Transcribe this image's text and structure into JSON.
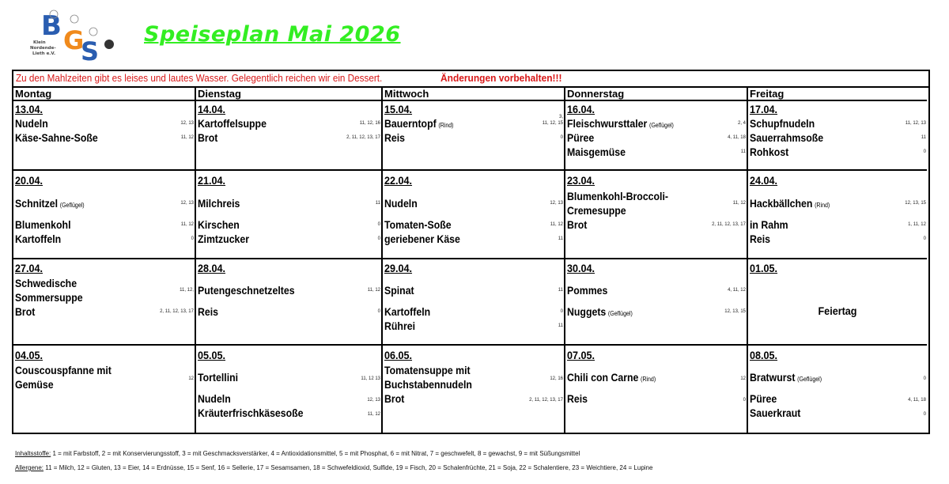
{
  "logo": {
    "letters": [
      "B",
      "G",
      "S"
    ],
    "text": "Klein Nordende-Lieth e.V.",
    "colors": {
      "blue": "#2a5db0",
      "orange": "#f08a1c"
    }
  },
  "title": "Speiseplan Mai 2026",
  "notice": {
    "text": "Zu den Mahlzeiten gibt es leises und lautes Wasser. Gelegentlich reichen wir ein Dessert.",
    "warning": "Änderungen vorbehalten!!!",
    "color": "#d81818"
  },
  "weekdays": [
    "Montag",
    "Dienstag",
    "Mittwoch",
    "Donnerstag",
    "Freitag"
  ],
  "weeks": [
    {
      "days": [
        {
          "date": "13.04.",
          "items": [
            {
              "name": "Nudeln",
              "codes": "12, 13"
            },
            {
              "name": "Käse-Sahne-Soße",
              "codes": "11, 12"
            }
          ]
        },
        {
          "date": "14.04.",
          "items": [
            {
              "name": "Kartoffelsuppe",
              "codes": "11, 12, 16"
            },
            {
              "name": "Brot",
              "codes": "2, 11, 12, 13, 17"
            }
          ]
        },
        {
          "date": "15.04.",
          "items": [
            {
              "name": "Bauerntopf",
              "note": "(Rind)",
              "codes": "3,\n11, 12, 15"
            },
            {
              "name": "Reis",
              "codes": "0"
            }
          ]
        },
        {
          "date": "16.04.",
          "items": [
            {
              "name": "Fleischwursttaler",
              "note": "(Geflügel)",
              "codes": "2, 4"
            },
            {
              "name": "Püree",
              "codes": "4, 11, 18"
            },
            {
              "name": "Maisgemüse",
              "codes": "11"
            }
          ]
        },
        {
          "date": "17.04.",
          "items": [
            {
              "name": "Schupfnudeln",
              "codes": "11, 12, 13"
            },
            {
              "name": "Sauerrahmsoße",
              "codes": "11"
            },
            {
              "name": "Rohkost",
              "codes": "0"
            }
          ]
        }
      ]
    },
    {
      "days": [
        {
          "date": "20.04.",
          "items": [
            {
              "name": "Schnitzel",
              "note": "(Geflügel)",
              "codes": "12, 13"
            },
            {
              "name": "Blumenkohl",
              "codes": "11, 12"
            },
            {
              "name": "Kartoffeln",
              "codes": "0"
            }
          ]
        },
        {
          "date": "21.04.",
          "items": [
            {
              "name": "Milchreis",
              "codes": "11"
            },
            {
              "name": "Kirschen",
              "codes": "0"
            },
            {
              "name": "Zimtzucker",
              "codes": "0"
            }
          ]
        },
        {
          "date": "22.04.",
          "items": [
            {
              "name": "Nudeln",
              "codes": "12, 13"
            },
            {
              "name": "Tomaten-Soße",
              "codes": "11, 12"
            },
            {
              "name": "geriebener Käse",
              "codes": "11"
            }
          ]
        },
        {
          "date": "23.04.",
          "items": [
            {
              "name": "Blumenkohl-Broccoli-\nCremesuppe",
              "codes": "11, 12"
            },
            {
              "name": "Brot",
              "codes": "2, 11, 12, 13, 17"
            }
          ]
        },
        {
          "date": "24.04.",
          "items": [
            {
              "name": "Hackbällchen",
              "note": "(Rind)",
              "codes": "12, 13, 15"
            },
            {
              "name": "in Rahm",
              "codes": "1, 11, 12"
            },
            {
              "name": "Reis",
              "codes": "0"
            }
          ]
        }
      ]
    },
    {
      "days": [
        {
          "date": "27.04.",
          "items": [
            {
              "name": "Schwedische\nSommersuppe",
              "codes": "11, 12,"
            },
            {
              "name": "Brot",
              "codes": "2, 11, 12, 13, 17"
            }
          ]
        },
        {
          "date": "28.04.",
          "items": [
            {
              "name": "Putengeschnetzeltes",
              "codes": "11, 12"
            },
            {
              "name": "Reis",
              "codes": "0"
            }
          ]
        },
        {
          "date": "29.04.",
          "items": [
            {
              "name": "Spinat",
              "codes": "11"
            },
            {
              "name": "Kartoffeln",
              "codes": "0"
            },
            {
              "name": "Rührei",
              "codes": "11"
            }
          ]
        },
        {
          "date": "30.04.",
          "items": [
            {
              "name": "Pommes",
              "codes": "4, 11, 12"
            },
            {
              "name": "Nuggets",
              "note": "(Geflügel)",
              "codes": "12, 13, 15"
            }
          ]
        },
        {
          "date": "01.05.",
          "holiday": "Feiertag",
          "items": []
        }
      ]
    },
    {
      "days": [
        {
          "date": "04.05.",
          "items": [
            {
              "name": "Couscouspfanne mit\nGemüse",
              "codes": "12"
            }
          ]
        },
        {
          "date": "05.05.",
          "items": [
            {
              "name": "Tortellini",
              "codes": "11, 12 13"
            },
            {
              "name": "Nudeln",
              "codes": "12, 13"
            },
            {
              "name": "Kräuterfrischkäsesoße",
              "codes": "11, 12"
            }
          ]
        },
        {
          "date": "06.05.",
          "items": [
            {
              "name": "Tomatensuppe mit\nBuchstabennudeln",
              "codes": "12, 16"
            },
            {
              "name": "Brot",
              "codes": "2, 11, 12, 13, 17"
            }
          ]
        },
        {
          "date": "07.05.",
          "items": [
            {
              "name": "Chili con Carne",
              "note": "(Rind)",
              "codes": "12"
            },
            {
              "name": "Reis",
              "codes": "0"
            }
          ]
        },
        {
          "date": "08.05.",
          "items": [
            {
              "name": "Bratwurst",
              "note": "(Geflügel)",
              "codes": "0"
            },
            {
              "name": "Püree",
              "codes": "4, 11, 18"
            },
            {
              "name": "Sauerkraut",
              "codes": "0"
            }
          ]
        }
      ]
    }
  ],
  "legend": {
    "ingredients_label": "Inhaltsstoffe:",
    "ingredients": "1 = mit Farbstoff, 2 = mit Konservierungsstoff, 3 = mit Geschmacksverstärker, 4 = Antioxidationsmittel, 5 = mit Phosphat, 6 = mit Nitrat, 7 = geschwefelt, 8 = gewachst, 9 = mit Süßungsmittel",
    "allergens_label": "Allergene:",
    "allergens": "11 = Milch, 12 = Gluten, 13 = Eier, 14 = Erdnüsse,  15 = Senf, 16 = Sellerie, 17 = Sesamsamen, 18 = Schwefeldioxid, Sulfide, 19 = Fisch, 20 = Schalenfrüchte, 21 = Soja, 22 = Schalentiere, 23 = Weichtiere, 24 = Lupine"
  }
}
